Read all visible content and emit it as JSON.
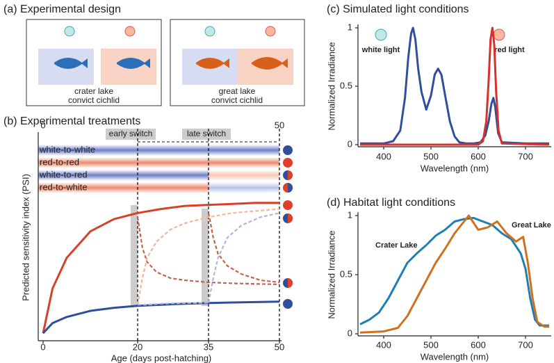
{
  "panel_a": {
    "title": "(a) Experimental design",
    "groups": [
      {
        "line1": "crater lake",
        "line2": "convict cichlid"
      },
      {
        "line1": "great lake",
        "line2": "convict cichlid"
      }
    ]
  },
  "chart_data": [
    {
      "type": "line",
      "title": "(b) Experimental treatments",
      "xlabel": "Age (days post-hatching)",
      "ylabel": "Predicted sensitivity index (PSI)",
      "xlim": [
        0,
        50
      ],
      "ylim": [
        0,
        1
      ],
      "xticks": [
        0,
        20,
        35,
        50
      ],
      "top_xticks": [
        0,
        50
      ],
      "treatments": [
        "white-to-white",
        "red-to-red",
        "white-to-red",
        "red-to-white"
      ],
      "annotations": [
        "early switch",
        "late switch"
      ],
      "series": [
        {
          "color": "#d8402a",
          "x": [
            0,
            2,
            5,
            10,
            15,
            20,
            25,
            30,
            35,
            40,
            45,
            50
          ],
          "values": [
            0.03,
            0.25,
            0.4,
            0.53,
            0.59,
            0.62,
            0.64,
            0.655,
            0.66,
            0.665,
            0.67,
            0.67
          ]
        },
        {
          "color": "#2f4f9a",
          "x": [
            0,
            2,
            5,
            10,
            15,
            20,
            25,
            30,
            35,
            40,
            45,
            50
          ],
          "values": [
            0.03,
            0.08,
            0.11,
            0.14,
            0.155,
            0.165,
            0.17,
            0.175,
            0.178,
            0.181,
            0.183,
            0.185
          ]
        },
        {
          "color": "#c8604a",
          "dashed": true,
          "x": [
            20,
            21,
            22,
            24,
            27,
            30,
            35,
            40,
            45,
            50
          ],
          "values": [
            0.6,
            0.45,
            0.38,
            0.33,
            0.3,
            0.29,
            0.28,
            0.275,
            0.272,
            0.27
          ]
        },
        {
          "color": "#f0b89a",
          "dashed": true,
          "x": [
            20,
            21,
            22,
            24,
            27,
            30,
            35,
            40,
            45,
            50
          ],
          "values": [
            0.17,
            0.3,
            0.4,
            0.48,
            0.54,
            0.57,
            0.6,
            0.62,
            0.63,
            0.64
          ]
        },
        {
          "color": "#a8b8e0",
          "dashed": true,
          "x": [
            20,
            22,
            25,
            30,
            35
          ],
          "values": [
            0.17,
            0.17,
            0.175,
            0.178,
            0.18
          ]
        },
        {
          "color": "#c8604a",
          "dashed": true,
          "x": [
            35,
            36,
            37,
            39,
            42,
            46,
            50
          ],
          "values": [
            0.62,
            0.5,
            0.42,
            0.36,
            0.32,
            0.29,
            0.28
          ]
        },
        {
          "color": "#a8b8e0",
          "dashed": true,
          "x": [
            35,
            36,
            37,
            39,
            42,
            46,
            50
          ],
          "values": [
            0.18,
            0.3,
            0.4,
            0.5,
            0.56,
            0.6,
            0.62
          ]
        }
      ]
    },
    {
      "type": "line",
      "title": "(c) Simulated light conditions",
      "xlabel": "Wavelength (nm)",
      "ylabel": "Normalized Irradiance",
      "xlim": [
        350,
        750
      ],
      "ylim": [
        0,
        1
      ],
      "xticks": [
        400,
        500,
        600,
        700
      ],
      "yticks": [
        0,
        0.5,
        1
      ],
      "annotations": [
        "white light",
        "red light"
      ],
      "series": [
        {
          "color": "#2f4f9a",
          "x": [
            350,
            400,
            420,
            435,
            445,
            452,
            458,
            462,
            467,
            473,
            480,
            490,
            500,
            508,
            515,
            522,
            530,
            540,
            550,
            560,
            575,
            590,
            605,
            615,
            622,
            628,
            632,
            636,
            642,
            650,
            700,
            750
          ],
          "values": [
            0.01,
            0.01,
            0.03,
            0.12,
            0.4,
            0.75,
            0.95,
            1.0,
            0.9,
            0.65,
            0.45,
            0.3,
            0.42,
            0.6,
            0.65,
            0.6,
            0.42,
            0.2,
            0.07,
            0.02,
            0.01,
            0.01,
            0.02,
            0.08,
            0.2,
            0.35,
            0.4,
            0.32,
            0.1,
            0.02,
            0.01,
            0.01
          ]
        },
        {
          "color": "#d8302a",
          "x": [
            350,
            600,
            610,
            617,
            622,
            626,
            630,
            634,
            638,
            643,
            650,
            750
          ],
          "values": [
            0,
            0,
            0.03,
            0.2,
            0.55,
            0.9,
            1.0,
            0.85,
            0.45,
            0.12,
            0.01,
            0
          ]
        }
      ]
    },
    {
      "type": "line",
      "title": "(d) Habitat light conditions",
      "xlabel": "Wavelength (nm)",
      "ylabel": "Normalized Irradiance",
      "xlim": [
        350,
        750
      ],
      "ylim": [
        0,
        1
      ],
      "xticks": [
        400,
        500,
        600,
        700
      ],
      "yticks": [
        0,
        0.5,
        1
      ],
      "annotations": [
        "Crater Lake",
        "Great Lake"
      ],
      "series": [
        {
          "color": "#1e7fb4",
          "x": [
            350,
            370,
            390,
            410,
            430,
            450,
            470,
            490,
            510,
            530,
            550,
            570,
            590,
            610,
            630,
            650,
            670,
            690,
            700,
            710,
            720,
            730,
            750
          ],
          "values": [
            0.08,
            0.12,
            0.18,
            0.3,
            0.45,
            0.6,
            0.68,
            0.75,
            0.83,
            0.88,
            0.95,
            0.97,
            0.98,
            0.95,
            0.92,
            0.85,
            0.8,
            0.68,
            0.55,
            0.3,
            0.12,
            0.07,
            0.07
          ]
        },
        {
          "color": "#d0701f",
          "x": [
            350,
            400,
            430,
            450,
            470,
            490,
            510,
            530,
            550,
            570,
            580,
            600,
            620,
            640,
            660,
            680,
            695,
            705,
            715,
            725,
            740,
            750
          ],
          "values": [
            0.01,
            0.02,
            0.05,
            0.15,
            0.3,
            0.45,
            0.6,
            0.72,
            0.85,
            0.95,
            1.0,
            0.88,
            0.9,
            0.95,
            0.85,
            0.78,
            0.82,
            0.6,
            0.3,
            0.1,
            0.06,
            0.06
          ]
        }
      ]
    }
  ]
}
